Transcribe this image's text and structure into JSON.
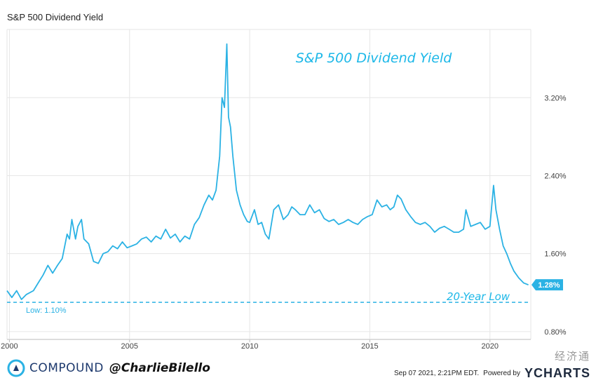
{
  "header": {
    "title": "S&P 500 Dividend Yield"
  },
  "chart_data": {
    "type": "line",
    "title": "S&P 500 Dividend Yield",
    "annotation_title": "S&P 500 Dividend Yield",
    "annotation_low": "20-Year Low",
    "last_value_label": "1.28%",
    "baseline_label": "Low: 1.10%",
    "baseline_value": 1.1,
    "ylim": [
      0.72,
      3.9
    ],
    "xlim": [
      1999.9,
      2021.7
    ],
    "y_ticks": [
      0.8,
      1.6,
      2.4,
      3.2
    ],
    "y_tick_labels": [
      "0.80%",
      "1.60%",
      "2.40%",
      "3.20%"
    ],
    "x_ticks": [
      2000,
      2005,
      2010,
      2015,
      2020
    ],
    "x_tick_labels": [
      "2000",
      "2005",
      "2010",
      "2015",
      "2020"
    ],
    "grid": true,
    "series": [
      {
        "x": [
          1999.9,
          2000.1,
          2000.3,
          2000.5,
          2000.7,
          2001.0,
          2001.2,
          2001.4,
          2001.6,
          2001.8,
          2002.0,
          2002.2,
          2002.4,
          2002.5,
          2002.6,
          2002.75,
          2002.85,
          2003.0,
          2003.1,
          2003.3,
          2003.5,
          2003.7,
          2003.9,
          2004.1,
          2004.3,
          2004.5,
          2004.7,
          2004.9,
          2005.1,
          2005.3,
          2005.5,
          2005.7,
          2005.9,
          2006.1,
          2006.3,
          2006.5,
          2006.7,
          2006.9,
          2007.1,
          2007.3,
          2007.5,
          2007.7,
          2007.9,
          2008.1,
          2008.3,
          2008.45,
          2008.6,
          2008.75,
          2008.85,
          2008.95,
          2009.05,
          2009.12,
          2009.2,
          2009.3,
          2009.45,
          2009.6,
          2009.75,
          2009.9,
          2010.0,
          2010.2,
          2010.35,
          2010.5,
          2010.65,
          2010.8,
          2011.0,
          2011.2,
          2011.4,
          2011.6,
          2011.75,
          2011.9,
          2012.1,
          2012.3,
          2012.5,
          2012.7,
          2012.9,
          2013.1,
          2013.3,
          2013.5,
          2013.7,
          2013.9,
          2014.1,
          2014.3,
          2014.5,
          2014.7,
          2014.9,
          2015.1,
          2015.3,
          2015.5,
          2015.7,
          2015.85,
          2016.0,
          2016.15,
          2016.3,
          2016.5,
          2016.7,
          2016.9,
          2017.1,
          2017.3,
          2017.5,
          2017.7,
          2017.9,
          2018.1,
          2018.3,
          2018.5,
          2018.7,
          2018.9,
          2019.0,
          2019.2,
          2019.4,
          2019.6,
          2019.8,
          2020.0,
          2020.15,
          2020.25,
          2020.4,
          2020.55,
          2020.7,
          2020.85,
          2021.0,
          2021.2,
          2021.4,
          2021.6
        ],
        "values": [
          1.22,
          1.15,
          1.22,
          1.13,
          1.18,
          1.22,
          1.3,
          1.38,
          1.48,
          1.4,
          1.48,
          1.55,
          1.8,
          1.75,
          1.95,
          1.75,
          1.88,
          1.95,
          1.75,
          1.7,
          1.52,
          1.5,
          1.6,
          1.62,
          1.68,
          1.65,
          1.72,
          1.66,
          1.68,
          1.7,
          1.75,
          1.77,
          1.72,
          1.78,
          1.75,
          1.85,
          1.76,
          1.8,
          1.72,
          1.78,
          1.75,
          1.9,
          1.97,
          2.1,
          2.2,
          2.15,
          2.25,
          2.6,
          3.2,
          3.1,
          3.75,
          3.0,
          2.9,
          2.6,
          2.25,
          2.1,
          2.0,
          1.93,
          1.92,
          2.05,
          1.9,
          1.92,
          1.8,
          1.75,
          2.05,
          2.1,
          1.95,
          2.0,
          2.08,
          2.05,
          2.0,
          2.0,
          2.1,
          2.02,
          2.05,
          1.96,
          1.93,
          1.95,
          1.9,
          1.92,
          1.95,
          1.92,
          1.9,
          1.95,
          1.98,
          2.0,
          2.15,
          2.08,
          2.1,
          2.05,
          2.08,
          2.2,
          2.16,
          2.05,
          1.98,
          1.92,
          1.9,
          1.92,
          1.88,
          1.82,
          1.86,
          1.88,
          1.85,
          1.82,
          1.82,
          1.85,
          2.05,
          1.88,
          1.9,
          1.92,
          1.85,
          1.88,
          2.3,
          2.05,
          1.85,
          1.68,
          1.6,
          1.5,
          1.42,
          1.35,
          1.3,
          1.28
        ]
      }
    ]
  },
  "footer": {
    "brand": "COMPOUND",
    "handle": "@CharlieBilello",
    "timestamp": "Sep 07 2021, 2:21PM EDT.",
    "powered_by": "Powered by",
    "ycharts": "YCHARTS",
    "watermark": "经济通"
  },
  "colors": {
    "line": "#2bb2e4",
    "accent": "#1db8e8",
    "grid": "#e6e6e6",
    "label_bg": "#2bb2e4"
  }
}
